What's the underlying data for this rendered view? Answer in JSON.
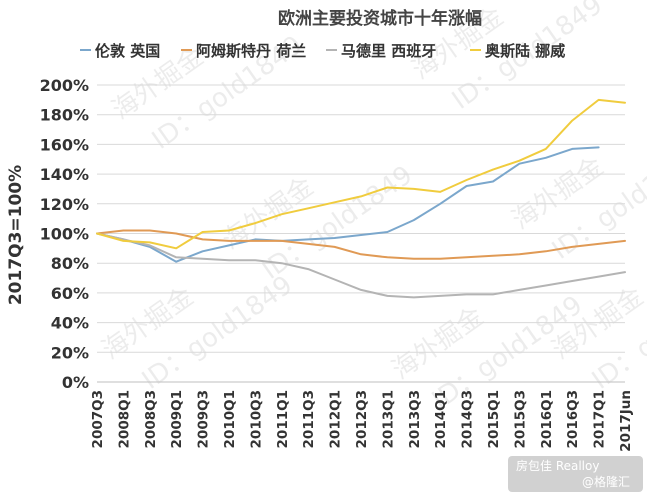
{
  "chart_data": {
    "type": "line",
    "title": "欧洲主要投资城市十年涨幅",
    "ylabel": "2017Q3=100%",
    "xlabel": "",
    "ylim": [
      0,
      200
    ],
    "yticks": [
      "0%",
      "20%",
      "40%",
      "60%",
      "80%",
      "100%",
      "120%",
      "140%",
      "160%",
      "180%",
      "200%"
    ],
    "grid": "horizontal",
    "legend_position": "top",
    "categories": [
      "2007Q3",
      "2008Q1",
      "2008Q3",
      "2009Q1",
      "2009Q3",
      "2010Q1",
      "2010Q3",
      "2011Q1",
      "2011Q3",
      "2012Q1",
      "2012Q3",
      "2013Q1",
      "2013Q3",
      "2014Q1",
      "2014Q3",
      "2015Q1",
      "2015Q3",
      "2016Q1",
      "2016Q3",
      "2017Q1",
      "2017Jun"
    ],
    "series": [
      {
        "name": "伦敦 英国",
        "color": "#7ba7cc",
        "values": [
          100,
          96,
          91,
          81,
          88,
          92,
          96,
          95,
          96,
          97,
          99,
          101,
          109,
          120,
          132,
          135,
          147,
          151,
          157,
          158,
          null
        ]
      },
      {
        "name": "阿姆斯特丹 荷兰",
        "color": "#e09a55",
        "values": [
          100,
          102,
          102,
          100,
          96,
          95,
          95,
          95,
          93,
          91,
          86,
          84,
          83,
          83,
          84,
          85,
          86,
          88,
          91,
          93,
          95
        ]
      },
      {
        "name": "马德里 西班牙",
        "color": "#b4b4b4",
        "values": [
          100,
          96,
          92,
          84,
          83,
          82,
          82,
          80,
          76,
          69,
          62,
          58,
          57,
          58,
          59,
          59,
          62,
          65,
          68,
          71,
          74
        ]
      },
      {
        "name": "奥斯陆 挪威",
        "color": "#f0cc3e",
        "values": [
          100,
          95,
          94,
          90,
          101,
          102,
          107,
          113,
          117,
          121,
          125,
          131,
          130,
          128,
          136,
          143,
          149,
          157,
          176,
          190,
          188
        ]
      }
    ]
  },
  "watermark": {
    "site": "海外掘金",
    "id": "ID：gold1849"
  },
  "credits": {
    "line1": "房包佳 Realloy",
    "line2": "@格隆汇"
  }
}
